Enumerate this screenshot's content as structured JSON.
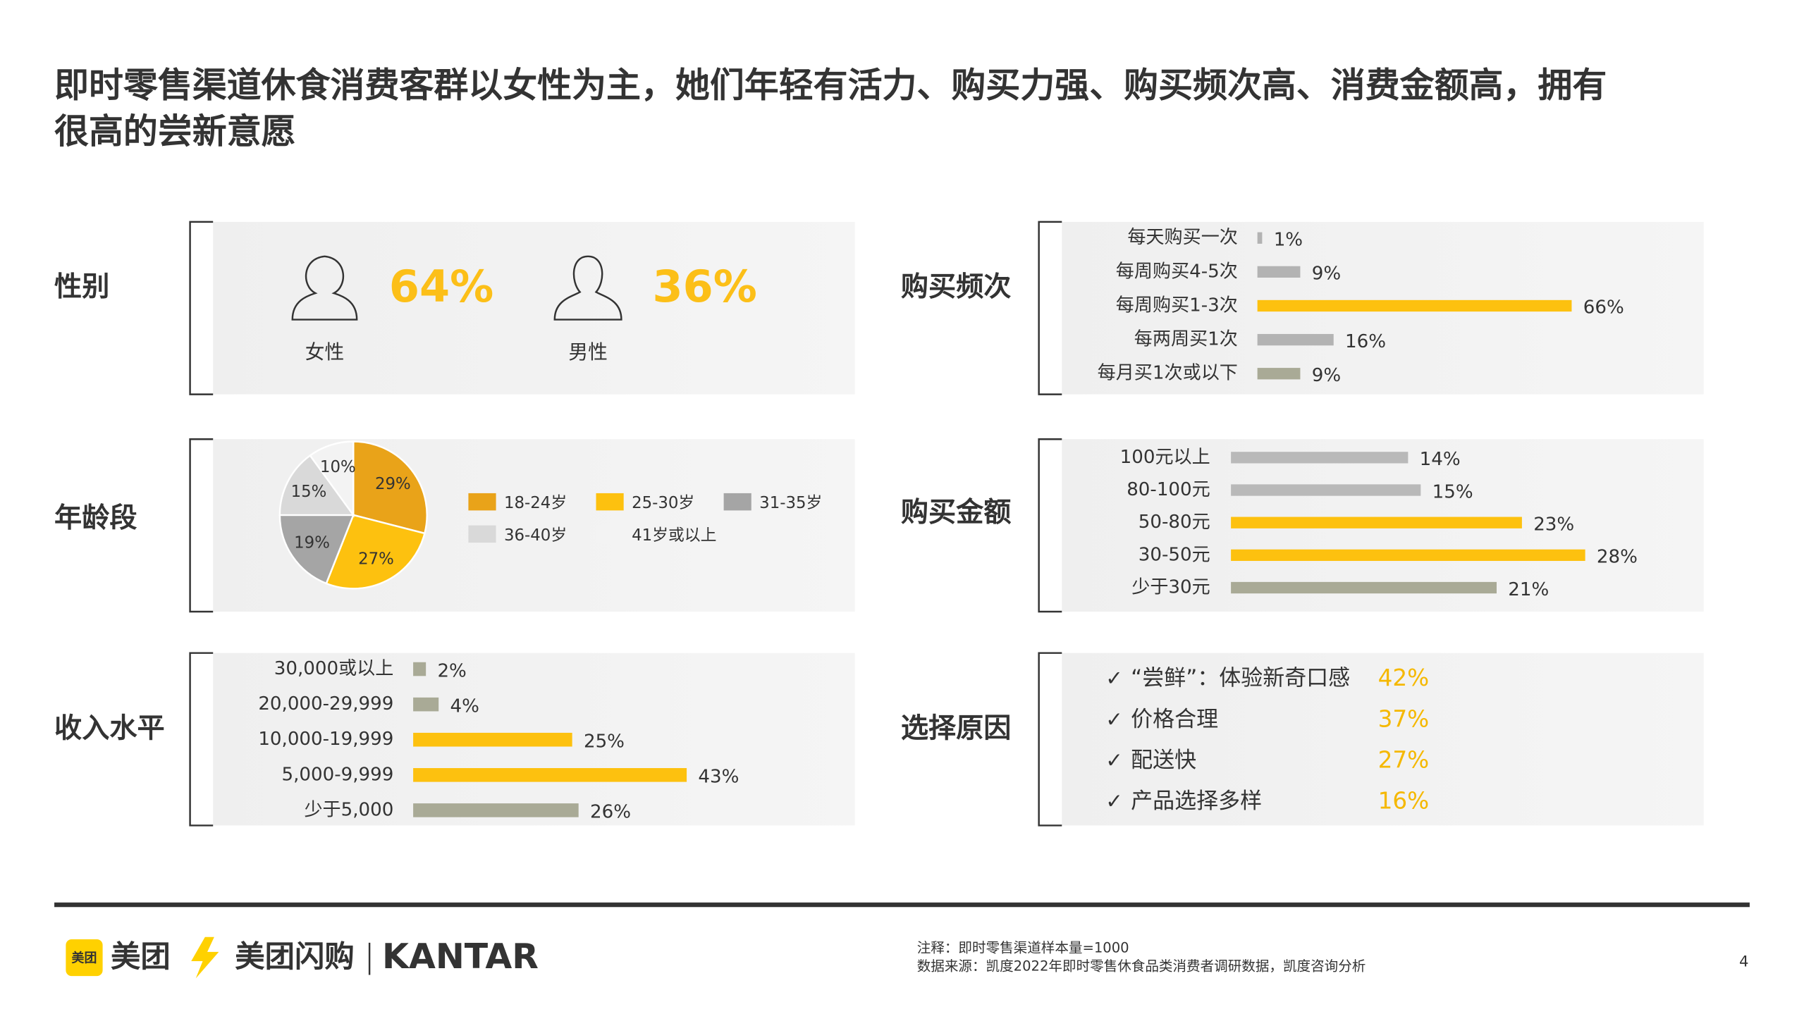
{
  "title": [
    "即时零售渠道休食消费客群以女性为主，她们年轻有活力、购买力强、购买频次高、消费金额高，拥有",
    "很高的尝新意愿"
  ],
  "chart_data": [
    {
      "type": "stat",
      "title": "性别",
      "categories": [
        "女性",
        "男性"
      ],
      "values": [
        64,
        36
      ],
      "value_labels": [
        "64%",
        "36%"
      ],
      "color": "#fcbf18"
    },
    {
      "type": "pie",
      "title": "年龄段",
      "categories": [
        "18-24岁",
        "25-30岁",
        "31-35岁",
        "36-40岁",
        "41岁或以上"
      ],
      "values": [
        29,
        27,
        19,
        15,
        10
      ],
      "value_labels": [
        "29%",
        "27%",
        "19%",
        "15%",
        "10%"
      ],
      "colors": [
        "#e9a319",
        "#fdc10f",
        "#a5a5a5",
        "#d9d9d9",
        "#f3f3f3"
      ]
    },
    {
      "type": "bar",
      "title": "收入水平",
      "categories": [
        "30,000或以上",
        "20,000-29,999",
        "10,000-19,999",
        "5,000-9,999",
        "少于5,000"
      ],
      "values": [
        2,
        4,
        25,
        43,
        26
      ],
      "value_labels": [
        "2%",
        "4%",
        "25%",
        "43%",
        "26%"
      ],
      "colors": [
        "#a9aa96",
        "#a9aa96",
        "#fdc10f",
        "#fdc10f",
        "#a9aa96"
      ]
    },
    {
      "type": "bar",
      "title": "购买频次",
      "categories": [
        "每天购买一次",
        "每周购买4-5次",
        "每周购买1-3次",
        "每两周买1次",
        "每月买1次或以下"
      ],
      "values": [
        1,
        9,
        66,
        16,
        9
      ],
      "value_labels": [
        "1%",
        "9%",
        "66%",
        "16%",
        "9%"
      ],
      "colors": [
        "#b3b3b3",
        "#b3b3b3",
        "#fdc10f",
        "#b3b3b3",
        "#a9aa96"
      ]
    },
    {
      "type": "bar",
      "title": "购买金额",
      "categories": [
        "100元以上",
        "80-100元",
        "50-80元",
        "30-50元",
        "少于30元"
      ],
      "values": [
        14,
        15,
        23,
        28,
        21
      ],
      "value_labels": [
        "14%",
        "15%",
        "23%",
        "28%",
        "21%"
      ],
      "colors": [
        "#b9b9b9",
        "#b9b9b9",
        "#fdc10f",
        "#fdc10f",
        "#a9aa96"
      ]
    },
    {
      "type": "list",
      "title": "选择原因",
      "categories": [
        "“尝鲜”：体验新奇口感",
        "价格合理",
        "配送快",
        "产品选择多样"
      ],
      "values": [
        42,
        37,
        27,
        16
      ],
      "value_labels": [
        "42%",
        "37%",
        "27%",
        "16%"
      ],
      "color": "#f5b800"
    }
  ],
  "footer": {
    "logos": [
      "美团",
      "美团闪购",
      "KANTAR"
    ],
    "notes": [
      "注释：即时零售渠道样本量=1000",
      "数据来源：凯度2022年即时零售休食品类消费者调研数据，凯度咨询分析"
    ],
    "page": "4"
  }
}
